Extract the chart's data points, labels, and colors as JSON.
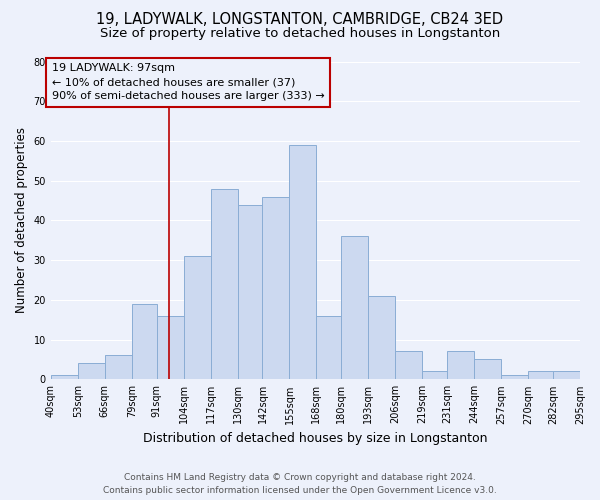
{
  "title": "19, LADYWALK, LONGSTANTON, CAMBRIDGE, CB24 3ED",
  "subtitle": "Size of property relative to detached houses in Longstanton",
  "xlabel": "Distribution of detached houses by size in Longstanton",
  "ylabel": "Number of detached properties",
  "bar_color": "#ccd9f0",
  "bar_edge_color": "#8aadd4",
  "background_color": "#edf1fb",
  "bins": [
    40,
    53,
    66,
    79,
    91,
    104,
    117,
    130,
    142,
    155,
    168,
    180,
    193,
    206,
    219,
    231,
    244,
    257,
    270,
    282,
    295
  ],
  "counts": [
    1,
    4,
    6,
    19,
    16,
    31,
    48,
    44,
    46,
    59,
    16,
    36,
    21,
    7,
    2,
    7,
    5,
    1,
    2,
    2
  ],
  "tick_labels": [
    "40sqm",
    "53sqm",
    "66sqm",
    "79sqm",
    "91sqm",
    "104sqm",
    "117sqm",
    "130sqm",
    "142sqm",
    "155sqm",
    "168sqm",
    "180sqm",
    "193sqm",
    "206sqm",
    "219sqm",
    "231sqm",
    "244sqm",
    "257sqm",
    "270sqm",
    "282sqm",
    "295sqm"
  ],
  "ylim": [
    0,
    80
  ],
  "yticks": [
    0,
    10,
    20,
    30,
    40,
    50,
    60,
    70,
    80
  ],
  "vline_x": 97,
  "vline_color": "#bb0000",
  "annotation_line1": "19 LADYWALK: 97sqm",
  "annotation_line2": "← 10% of detached houses are smaller (37)",
  "annotation_line3": "90% of semi-detached houses are larger (333) →",
  "annotation_box_color": "#bb0000",
  "footer_line1": "Contains HM Land Registry data © Crown copyright and database right 2024.",
  "footer_line2": "Contains public sector information licensed under the Open Government Licence v3.0.",
  "grid_color": "#ffffff",
  "title_fontsize": 10.5,
  "subtitle_fontsize": 9.5,
  "tick_fontsize": 7,
  "ylabel_fontsize": 8.5,
  "xlabel_fontsize": 9,
  "annotation_fontsize": 8,
  "footer_fontsize": 6.5
}
